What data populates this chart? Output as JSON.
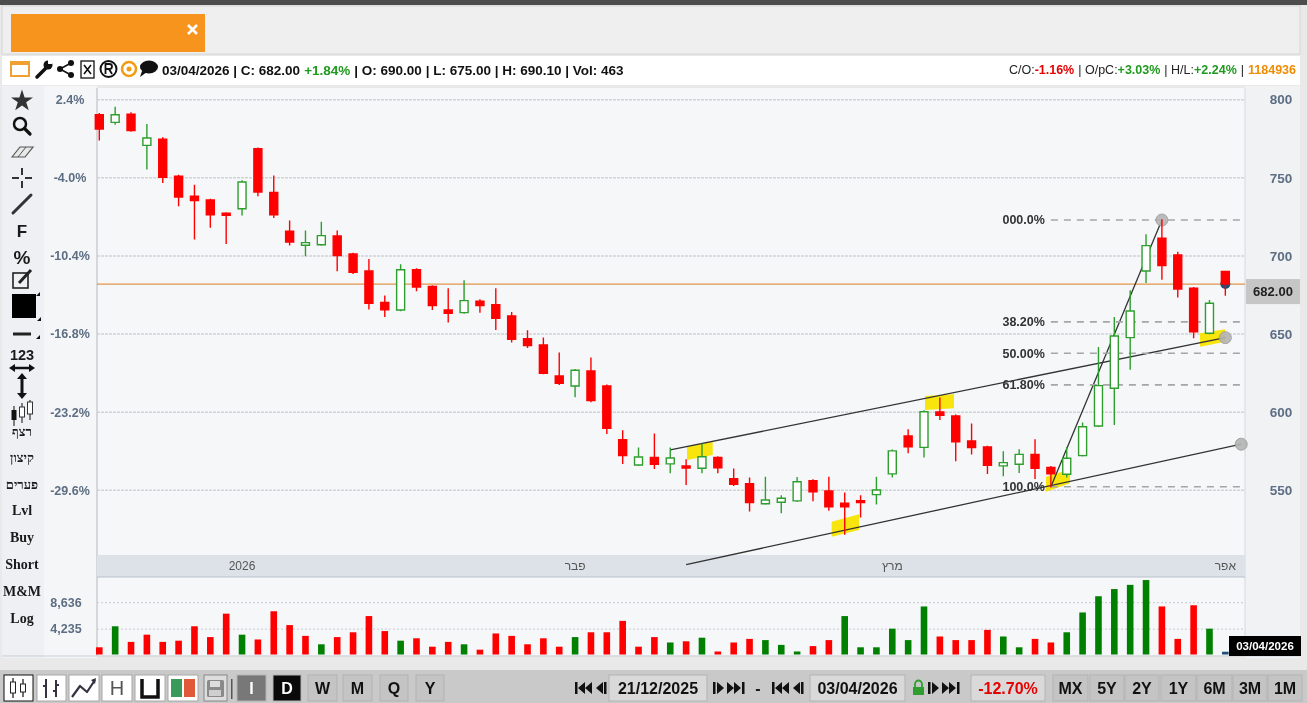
{
  "chart_data": [
    {
      "type": "candlestick",
      "categories": [
        null,
        null,
        null,
        null,
        null,
        null,
        null,
        null,
        null,
        "2026",
        null,
        null,
        null,
        null,
        null,
        null,
        null,
        null,
        null,
        null,
        null,
        null,
        null,
        null,
        null,
        null,
        null,
        null,
        null,
        null,
        "פבר",
        null,
        null,
        null,
        null,
        null,
        null,
        null,
        null,
        null,
        null,
        null,
        null,
        null,
        null,
        null,
        null,
        null,
        null,
        null,
        "מרץ",
        null,
        null,
        null,
        null,
        null,
        null,
        null,
        null,
        null,
        null,
        null,
        null,
        null,
        null,
        null,
        null,
        null,
        null,
        null,
        null,
        "אפר",
        null
      ],
      "ohlc": [
        [
          790.4,
          791.0,
          774.4,
          781.3
        ],
        [
          785.5,
          795.1,
          784.4,
          790.4
        ],
        [
          790.8,
          791.5,
          780.0,
          780.2
        ],
        [
          770.8,
          784.0,
          755.8,
          775.5
        ],
        [
          774.8,
          775.5,
          747.1,
          750.3
        ],
        [
          751.0,
          751.5,
          732.2,
          737.7
        ],
        [
          738.2,
          745.2,
          711.0,
          735.4
        ],
        [
          735.8,
          736.2,
          718.5,
          726.4
        ],
        [
          727.3,
          727.6,
          708.1,
          726.0
        ],
        [
          730.2,
          748.0,
          726.4,
          747.3
        ],
        [
          768.6,
          769.0,
          738.6,
          740.9
        ],
        [
          740.7,
          751.0,
          724.7,
          726.4
        ],
        [
          715.8,
          722.2,
          707.2,
          708.9
        ],
        [
          706.8,
          715.8,
          700.2,
          708.5
        ],
        [
          707.2,
          721.5,
          707.0,
          713.0
        ],
        [
          712.8,
          715.8,
          690.6,
          700.2
        ],
        [
          701.2,
          701.6,
          688.9,
          689.5
        ],
        [
          690.4,
          697.6,
          666.2,
          669.7
        ],
        [
          670.3,
          674.2,
          661.4,
          665.6
        ],
        [
          665.4,
          694.2,
          665.0,
          691.2
        ],
        [
          691.2,
          691.6,
          677.8,
          680.1
        ],
        [
          680.5,
          680.8,
          665.9,
          668.2
        ],
        [
          665.4,
          678.8,
          657.9,
          663.3
        ],
        [
          663.7,
          684.0,
          663.4,
          671.4
        ],
        [
          671.0,
          671.8,
          664.1,
          668.2
        ],
        [
          668.8,
          678.8,
          653.0,
          660.1
        ],
        [
          661.6,
          663.7,
          645.1,
          646.7
        ],
        [
          647.0,
          652.0,
          641.5,
          642.6
        ],
        [
          643.0,
          647.3,
          624.7,
          624.9
        ],
        [
          623.2,
          637.7,
          617.8,
          618.5
        ],
        [
          616.8,
          627.2,
          610.0,
          626.8
        ],
        [
          626.4,
          634.5,
          606.8,
          607.4
        ],
        [
          616.8,
          617.2,
          586.5,
          589.7
        ],
        [
          582.4,
          588.0,
          567.3,
          572.2
        ],
        [
          566.2,
          576.9,
          566.0,
          571.3
        ],
        [
          571.1,
          585.9,
          564.1,
          566.7
        ],
        [
          566.9,
          576.9,
          561.3,
          570.7
        ],
        [
          565.6,
          569.4,
          553.9,
          564.3
        ],
        [
          564.1,
          579.5,
          561.3,
          571.5
        ],
        [
          571.1,
          571.4,
          561.3,
          564.4
        ],
        [
          557.4,
          563.5,
          553.2,
          553.9
        ],
        [
          554.2,
          557.7,
          536.9,
          542.1
        ],
        [
          541.4,
          558.3,
          541.2,
          543.8
        ],
        [
          542.3,
          546.4,
          535.7,
          544.9
        ],
        [
          543.2,
          558.0,
          543.0,
          555.5
        ],
        [
          556.2,
          556.6,
          543.4,
          549.1
        ],
        [
          549.6,
          558.3,
          537.4,
          539.5
        ],
        [
          541.7,
          548.1,
          522.0,
          539.5
        ],
        [
          543.4,
          546.4,
          533.1,
          542.1
        ],
        [
          547.2,
          558.3,
          541.3,
          550.2
        ],
        [
          560.5,
          575.6,
          558.7,
          575.2
        ],
        [
          584.8,
          588.6,
          574.1,
          577.9
        ],
        [
          577.5,
          600.8,
          571.5,
          600.3
        ],
        [
          600.1,
          608.9,
          595.5,
          598.0
        ],
        [
          597.6,
          598.0,
          569.0,
          581.1
        ],
        [
          581.6,
          592.3,
          573.3,
          577.3
        ],
        [
          577.7,
          578.1,
          560.9,
          566.0
        ],
        [
          565.6,
          574.5,
          559.4,
          567.7
        ],
        [
          566.7,
          575.8,
          561.5,
          573.0
        ],
        [
          573.0,
          582.2,
          557.7,
          564.1
        ],
        [
          564.7,
          565.1,
          552.3,
          560.5
        ],
        [
          560.3,
          577.3,
          558.7,
          570.5
        ],
        [
          572.2,
          592.9,
          572.0,
          590.7
        ],
        [
          591.2,
          641.3,
          591.0,
          617.0
        ],
        [
          615.3,
          660.5,
          592.3,
          648.8
        ],
        [
          647.7,
          677.6,
          627.6,
          664.8
        ],
        [
          690.4,
          713.4,
          683.1,
          706.6
        ],
        [
          711.3,
          723.0,
          685.2,
          693.8
        ],
        [
          700.6,
          702.3,
          673.9,
          678.8
        ],
        [
          679.3,
          679.7,
          647.7,
          651.5
        ],
        [
          650.5,
          671.4,
          650.3,
          669.7
        ],
        [
          690.0,
          690.1,
          675.0,
          682.0
        ],
        null
      ],
      "colors": [
        "#ff0000",
        "#2e9e2e",
        "#ff0000",
        "#2e9e2e",
        "#ff0000",
        "#ff0000",
        "#ff0000",
        "#ff0000",
        "#ff0000",
        "#2e9e2e",
        "#ff0000",
        "#ff0000",
        "#ff0000",
        "#2e9e2e",
        "#2e9e2e",
        "#ff0000",
        "#ff0000",
        "#ff0000",
        "#ff0000",
        "#2e9e2e",
        "#ff0000",
        "#ff0000",
        "#ff0000",
        "#2e9e2e",
        "#ff0000",
        "#ff0000",
        "#ff0000",
        "#ff0000",
        "#ff0000",
        "#ff0000",
        "#2e9e2e",
        "#ff0000",
        "#ff0000",
        "#ff0000",
        "#2e9e2e",
        "#ff0000",
        "#2e9e2e",
        "#ff0000",
        "#2e9e2e",
        "#ff0000",
        "#ff0000",
        "#ff0000",
        "#2e9e2e",
        "#2e9e2e",
        "#2e9e2e",
        "#ff0000",
        "#ff0000",
        "#ff0000",
        "#ff0000",
        "#2e9e2e",
        "#2e9e2e",
        "#ff0000",
        "#2e9e2e",
        "#ff0000",
        "#ff0000",
        "#ff0000",
        "#ff0000",
        "#2e9e2e",
        "#2e9e2e",
        "#ff0000",
        "#ff0000",
        "#2e9e2e",
        "#2e9e2e",
        "#2e9e2e",
        "#2e9e2e",
        "#2e9e2e",
        "#2e9e2e",
        "#ff0000",
        "#ff0000",
        "#ff0000",
        "#2e9e2e",
        "#ff0000",
        null
      ],
      "ylim": [
        494.5,
        807.5
      ],
      "yticks": [
        550,
        600,
        650,
        700,
        750,
        800
      ],
      "y2lim": [
        -36.7,
        3.36
      ],
      "y2ticks": [
        {
          "value": -29.6,
          "label": "-29.6%"
        },
        {
          "value": -23.2,
          "label": "-23.2%"
        },
        {
          "value": -16.8,
          "label": "-16.8%"
        },
        {
          "value": -10.4,
          "label": "-10.4%"
        },
        {
          "value": -4.0,
          "label": "-4.0%"
        },
        {
          "value": 2.4,
          "label": "2.4%"
        }
      ],
      "grid": "y",
      "ref_lines": [
        {
          "axis": "y",
          "value": 682,
          "label": "682.00",
          "color": "#e0954a"
        }
      ],
      "series": [
        {
          "type": "line",
          "color": "#333333",
          "values": [
            null,
            null,
            null,
            null,
            null,
            null,
            null,
            null,
            null,
            null,
            null,
            null,
            null,
            null,
            null,
            null,
            null,
            null,
            null,
            null,
            null,
            null,
            null,
            null,
            null,
            null,
            null,
            null,
            null,
            null,
            null,
            null,
            null,
            null,
            null,
            null,
            null,
            null,
            null,
            null,
            null,
            null,
            null,
            null,
            null,
            null,
            null,
            null,
            null,
            null,
            null,
            null,
            null,
            null,
            null,
            null,
            null,
            null,
            null,
            null,
            552.3,
            null,
            null,
            null,
            null,
            null,
            null,
            723,
            null,
            null,
            null,
            null,
            null
          ]
        },
        {
          "type": "line",
          "color": "#333333",
          "values": [
            null,
            null,
            null,
            null,
            null,
            null,
            null,
            null,
            null,
            null,
            null,
            null,
            null,
            null,
            null,
            null,
            null,
            null,
            null,
            null,
            null,
            null,
            null,
            null,
            null,
            null,
            null,
            null,
            null,
            null,
            null,
            null,
            null,
            null,
            null,
            null,
            575.8,
            null,
            null,
            null,
            null,
            null,
            null,
            null,
            null,
            null,
            null,
            null,
            null,
            null,
            null,
            null,
            null,
            null,
            null,
            null,
            null,
            null,
            null,
            null,
            null,
            null,
            null,
            null,
            null,
            null,
            null,
            null,
            null,
            null,
            null,
            647.7,
            null
          ]
        },
        {
          "type": "line",
          "color": "#333333",
          "values": [
            null,
            null,
            null,
            null,
            null,
            null,
            null,
            null,
            null,
            null,
            null,
            null,
            null,
            null,
            null,
            null,
            null,
            null,
            null,
            null,
            null,
            null,
            null,
            null,
            null,
            null,
            null,
            null,
            null,
            null,
            null,
            null,
            null,
            null,
            null,
            null,
            null,
            502.4,
            null,
            null,
            null,
            null,
            null,
            null,
            null,
            null,
            null,
            null,
            null,
            null,
            null,
            null,
            null,
            null,
            null,
            null,
            null,
            null,
            null,
            null,
            null,
            null,
            null,
            null,
            null,
            null,
            null,
            null,
            null,
            null,
            null,
            null,
            579.5
          ]
        },
        {
          "type": "line",
          "name": "000.0%",
          "color": "#a6a6a6",
          "line_style": "dashed",
          "values": [
            null,
            null,
            null,
            null,
            null,
            null,
            null,
            null,
            null,
            null,
            null,
            null,
            null,
            null,
            null,
            null,
            null,
            null,
            null,
            null,
            null,
            null,
            null,
            null,
            null,
            null,
            null,
            null,
            null,
            null,
            null,
            null,
            null,
            null,
            null,
            null,
            null,
            null,
            null,
            null,
            null,
            null,
            null,
            null,
            null,
            null,
            null,
            null,
            null,
            null,
            null,
            null,
            null,
            null,
            null,
            null,
            null,
            null,
            null,
            null,
            723,
            null,
            null,
            null,
            null,
            null,
            null,
            null,
            null,
            null,
            null,
            null,
            723
          ]
        },
        {
          "type": "line",
          "name": "38.20%",
          "color": "#a6a6a6",
          "line_style": "dashed",
          "values": [
            null,
            null,
            null,
            null,
            null,
            null,
            null,
            null,
            null,
            null,
            null,
            null,
            null,
            null,
            null,
            null,
            null,
            null,
            null,
            null,
            null,
            null,
            null,
            null,
            null,
            null,
            null,
            null,
            null,
            null,
            null,
            null,
            null,
            null,
            null,
            null,
            null,
            null,
            null,
            null,
            null,
            null,
            null,
            null,
            null,
            null,
            null,
            null,
            null,
            null,
            null,
            null,
            null,
            null,
            null,
            null,
            null,
            null,
            null,
            null,
            657.8,
            null,
            null,
            null,
            null,
            null,
            null,
            null,
            null,
            null,
            null,
            null,
            657.8
          ]
        },
        {
          "type": "line",
          "name": "50.00%",
          "color": "#a6a6a6",
          "line_style": "dashed",
          "values": [
            null,
            null,
            null,
            null,
            null,
            null,
            null,
            null,
            null,
            null,
            null,
            null,
            null,
            null,
            null,
            null,
            null,
            null,
            null,
            null,
            null,
            null,
            null,
            null,
            null,
            null,
            null,
            null,
            null,
            null,
            null,
            null,
            null,
            null,
            null,
            null,
            null,
            null,
            null,
            null,
            null,
            null,
            null,
            null,
            null,
            null,
            null,
            null,
            null,
            null,
            null,
            null,
            null,
            null,
            null,
            null,
            null,
            null,
            null,
            null,
            637.7,
            null,
            null,
            null,
            null,
            null,
            null,
            null,
            null,
            null,
            null,
            null,
            637.7
          ]
        },
        {
          "type": "line",
          "name": "61.80%",
          "color": "#a6a6a6",
          "line_style": "dashed",
          "values": [
            null,
            null,
            null,
            null,
            null,
            null,
            null,
            null,
            null,
            null,
            null,
            null,
            null,
            null,
            null,
            null,
            null,
            null,
            null,
            null,
            null,
            null,
            null,
            null,
            null,
            null,
            null,
            null,
            null,
            null,
            null,
            null,
            null,
            null,
            null,
            null,
            null,
            null,
            null,
            null,
            null,
            null,
            null,
            null,
            null,
            null,
            null,
            null,
            null,
            null,
            null,
            null,
            null,
            null,
            null,
            null,
            null,
            null,
            null,
            null,
            617.5,
            null,
            null,
            null,
            null,
            null,
            null,
            null,
            null,
            null,
            null,
            null,
            617.5
          ]
        },
        {
          "type": "line",
          "name": "100.0%",
          "color": "#a6a6a6",
          "line_style": "dashed",
          "values": [
            null,
            null,
            null,
            null,
            null,
            null,
            null,
            null,
            null,
            null,
            null,
            null,
            null,
            null,
            null,
            null,
            null,
            null,
            null,
            null,
            null,
            null,
            null,
            null,
            null,
            null,
            null,
            null,
            null,
            null,
            null,
            null,
            null,
            null,
            null,
            null,
            null,
            null,
            null,
            null,
            null,
            null,
            null,
            null,
            null,
            null,
            null,
            null,
            null,
            null,
            null,
            null,
            null,
            null,
            null,
            null,
            null,
            null,
            null,
            null,
            552.3,
            null,
            null,
            null,
            null,
            null,
            null,
            null,
            null,
            null,
            null,
            null,
            552.3
          ]
        }
      ],
      "annotations": [
        "03/04/2026 | C: 682.00",
        "+1.84%",
        "| O: 690.00 | L: 675.00 | H: 690.10 | Vol: 463",
        "C/O:",
        "-1.16%",
        "| O/pC:",
        "+3.03%",
        "| H/L:",
        "+2.24%",
        "|",
        "1184936"
      ]
    },
    {
      "type": "bar",
      "categories": [
        null,
        null,
        null,
        null,
        null,
        null,
        null,
        null,
        null,
        null,
        null,
        null,
        null,
        null,
        null,
        null,
        null,
        null,
        null,
        null,
        null,
        null,
        null,
        null,
        null,
        null,
        null,
        null,
        null,
        null,
        null,
        null,
        null,
        null,
        null,
        null,
        null,
        null,
        null,
        null,
        null,
        null,
        null,
        null,
        null,
        null,
        null,
        null,
        null,
        null,
        null,
        null,
        null,
        null,
        null,
        null,
        null,
        null,
        null,
        null,
        null,
        null,
        null,
        null,
        null,
        null,
        null,
        null,
        null,
        null,
        null,
        null,
        null
      ],
      "values": [
        1200,
        4700,
        2100,
        3300,
        2100,
        2300,
        4700,
        2900,
        6800,
        3300,
        2500,
        7200,
        4900,
        3100,
        1700,
        2900,
        3700,
        6400,
        3900,
        2300,
        2700,
        1300,
        2100,
        1700,
        800,
        3500,
        3100,
        1700,
        2700,
        1300,
        2900,
        3700,
        3700,
        5600,
        1300,
        2900,
        2000,
        2200,
        2800,
        500,
        2000,
        2600,
        2400,
        1600,
        500,
        1400,
        2400,
        6400,
        1200,
        1200,
        4300,
        2400,
        8000,
        3000,
        2400,
        2400,
        4100,
        3000,
        1200,
        2600,
        2000,
        3700,
        7000,
        9700,
        10900,
        11600,
        12400,
        8000,
        2600,
        8200,
        4300,
        463,
        null
      ],
      "colors": [
        "#ff0000",
        "#008000",
        "#ff0000",
        "#ff0000",
        "#ff0000",
        "#ff0000",
        "#ff0000",
        "#ff0000",
        "#ff0000",
        "#008000",
        "#ff0000",
        "#ff0000",
        "#ff0000",
        "#ff0000",
        "#008000",
        "#ff0000",
        "#ff0000",
        "#ff0000",
        "#ff0000",
        "#008000",
        "#ff0000",
        "#ff0000",
        "#ff0000",
        "#008000",
        "#ff0000",
        "#ff0000",
        "#ff0000",
        "#ff0000",
        "#ff0000",
        "#ff0000",
        "#008000",
        "#ff0000",
        "#ff0000",
        "#ff0000",
        "#ff0000",
        "#ff0000",
        "#008000",
        "#ff0000",
        "#008000",
        "#ff0000",
        "#ff0000",
        "#ff0000",
        "#008000",
        "#008000",
        "#008000",
        "#ff0000",
        "#ff0000",
        "#008000",
        "#008000",
        "#008000",
        "#008000",
        "#008000",
        "#008000",
        "#ff0000",
        "#ff0000",
        "#ff0000",
        "#ff0000",
        "#008000",
        "#008000",
        "#ff0000",
        "#ff0000",
        "#008000",
        "#008000",
        "#008000",
        "#008000",
        "#008000",
        "#008000",
        "#ff0000",
        "#ff0000",
        "#ff0000",
        "#008000",
        "#1f4e79",
        null
      ],
      "ylim": [
        0,
        12740
      ],
      "yticks": [
        {
          "value": 4235,
          "label": "4,235"
        },
        {
          "value": 8636,
          "label": "8,636"
        }
      ],
      "grid": "y",
      "tick_labels": "y",
      "annotations": [
        "03/04/2026"
      ]
    },
    {
      "type": "other",
      "annotations": [
        "F",
        "%",
        "123",
        "רצף",
        "קיצון",
        "פערים",
        "Lvl",
        "Buy",
        "Short",
        "M&M",
        "Log",
        "H",
        "I",
        "D",
        "W",
        "M",
        "Q",
        "Y",
        "21/12/2025",
        "-",
        "03/04/2026",
        "-12.70%",
        "MX",
        "5Y",
        "2Y",
        "1Y",
        "6M",
        "3M",
        "1M"
      ]
    }
  ]
}
